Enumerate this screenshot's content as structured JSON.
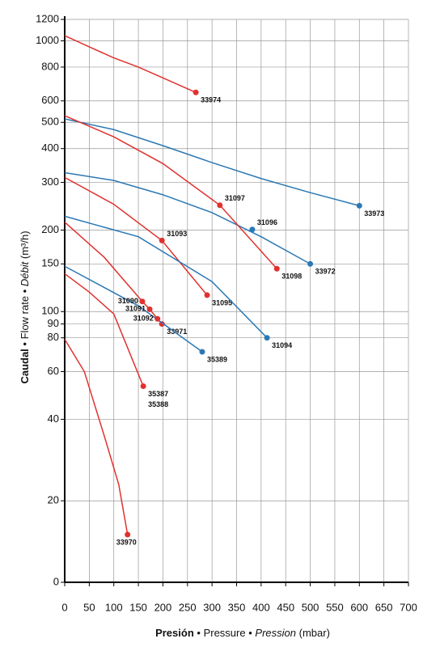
{
  "chart_data": {
    "type": "line",
    "log_y": true,
    "grid": true,
    "x_label": [
      "Presión",
      "•",
      "Pressure",
      "•",
      "Pression",
      "(mbar)"
    ],
    "y_label": [
      "Caudal",
      "•",
      "Flow rate",
      "•",
      "Débit",
      "(m³/h)"
    ],
    "xlim": [
      0,
      700
    ],
    "xticks": [
      0,
      50,
      100,
      150,
      200,
      250,
      300,
      350,
      400,
      450,
      500,
      550,
      600,
      650,
      700
    ],
    "ylim": [
      10,
      1200
    ],
    "yticks": [
      {
        "value": 10,
        "label": "0"
      },
      20,
      40,
      60,
      80,
      90,
      100,
      150,
      200,
      300,
      400,
      500,
      600,
      800,
      1000,
      1200
    ],
    "series": [
      {
        "labels": [
          "33974"
        ],
        "color": "#e0322f",
        "x": [
          0,
          50,
          100,
          150,
          200,
          267
        ],
        "values": [
          1045,
          950,
          865,
          800,
          730,
          645
        ]
      },
      {
        "labels": [
          "33973"
        ],
        "color": "#2b78b4",
        "x": [
          0,
          100,
          200,
          300,
          400,
          500,
          600
        ],
        "values": [
          515,
          470,
          410,
          355,
          310,
          275,
          246
        ]
      },
      {
        "labels": [
          "33972"
        ],
        "color": "#2b78b4",
        "x": [
          0,
          100,
          200,
          300,
          400,
          500
        ],
        "values": [
          326,
          305,
          270,
          232,
          189,
          150
        ]
      },
      {
        "labels": [
          "31098"
        ],
        "color": "#e0322f",
        "x": [
          0,
          100,
          200,
          316,
          432
        ],
        "values": [
          529,
          442,
          352,
          247,
          144
        ]
      },
      {
        "labels": [
          "31095"
        ],
        "color": "#e0322f",
        "x": [
          0,
          100,
          198,
          290
        ],
        "values": [
          313,
          249,
          183,
          115
        ]
      },
      {
        "labels": [
          "31094"
        ],
        "color": "#2b78b4",
        "x": [
          0,
          150,
          300,
          412
        ],
        "values": [
          225,
          189,
          129,
          80
        ]
      },
      {
        "labels": [
          "33971"
        ],
        "color": "#e0322f",
        "x": [
          0,
          80,
          158,
          173,
          189,
          198
        ],
        "values": [
          214,
          159,
          109,
          102,
          94,
          90
        ]
      },
      {
        "labels": [
          "35389"
        ],
        "color": "#2b78b4",
        "x": [
          0,
          150,
          280
        ],
        "values": [
          147,
          105,
          71
        ]
      },
      {
        "labels": [
          "35387",
          "35388"
        ],
        "color": "#e0322f",
        "x": [
          0,
          50,
          100,
          160
        ],
        "values": [
          138,
          118,
          98,
          53
        ]
      },
      {
        "labels": [
          "33970"
        ],
        "color": "#e0322f",
        "x": [
          0,
          40,
          80,
          110,
          128
        ],
        "values": [
          79,
          60,
          35,
          23,
          15
        ]
      }
    ],
    "points": [
      {
        "name": "31097",
        "color": "#e0322f",
        "x": 316,
        "y": 247
      },
      {
        "name": "31096",
        "color": "#2b78b4",
        "x": 382,
        "y": 201
      },
      {
        "name": "31093",
        "color": "#e0322f",
        "x": 198,
        "y": 183
      },
      {
        "name": "31090",
        "color": "#e0322f",
        "x": 158,
        "y": 109
      },
      {
        "name": "31091",
        "color": "#e0322f",
        "x": 173,
        "y": 102
      },
      {
        "name": "31092",
        "color": "#e0322f",
        "x": 189,
        "y": 94
      }
    ]
  }
}
